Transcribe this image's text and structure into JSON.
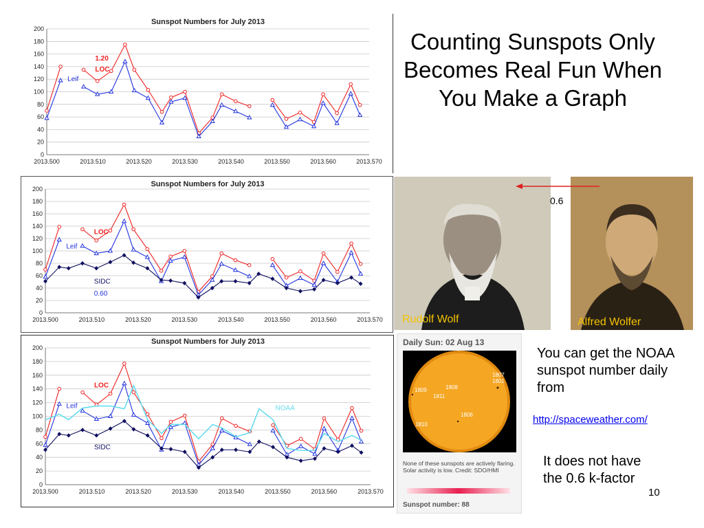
{
  "slide": {
    "title": "Counting Sunspots Only Becomes Real Fun When You Make a Graph",
    "factor_label": "0.6",
    "wolf_caption": "Rudolf Wolf",
    "wolfer_caption": "Alfred Wolfer",
    "noaa_text": "You can get the NOAA sunspot number daily from",
    "link_text": "http://spaceweather.com/",
    "k_factor_text": "It does not have the 0.6 k-factor",
    "page_number": "10"
  },
  "daily_sun": {
    "title": "Daily Sun: 02 Aug 13",
    "regions": [
      "1807",
      "1801",
      "1809",
      "1808",
      "1811",
      "1806",
      "1810"
    ],
    "note": "None of these sunspots are actively flaring. Solar activity is low. Credit: SDO/HMI",
    "sunspot_number": "Sunspot number: 88"
  },
  "colors": {
    "loc": "#ee2222",
    "leif": "#2233dd",
    "sidc": "#101060",
    "noaa": "#66ddee",
    "wolf_caption": "#f5c400"
  },
  "chart_data": [
    {
      "type": "line",
      "title": "Sunspot Numbers for July 2013",
      "xlim": [
        2013.5,
        2013.57
      ],
      "ylim": [
        0,
        200
      ],
      "yticks": [
        0,
        20,
        40,
        60,
        80,
        100,
        120,
        140,
        160,
        180,
        200
      ],
      "xticks": [
        2013.5,
        2013.51,
        2013.52,
        2013.53,
        2013.54,
        2013.55,
        2013.56,
        2013.57
      ],
      "grid": true,
      "annotations": [
        "1.20"
      ],
      "series": [
        {
          "name": "LOC",
          "x": [
            2013.5,
            2013.503,
            null,
            2013.508,
            2013.511,
            2013.514,
            2013.517,
            2013.519,
            2013.522,
            2013.525,
            2013.527,
            2013.53,
            2013.533,
            2013.536,
            2013.538,
            2013.541,
            2013.544,
            null,
            2013.549,
            2013.552,
            2013.555,
            2013.558,
            2013.56,
            2013.563,
            2013.566,
            2013.568
          ],
          "y": [
            70,
            140,
            null,
            135,
            117,
            133,
            175,
            135,
            103,
            68,
            91,
            100,
            34,
            59,
            96,
            85,
            77,
            null,
            87,
            57,
            67,
            52,
            96,
            66,
            112,
            79
          ]
        },
        {
          "name": "Leif",
          "x": [
            2013.5,
            2013.503,
            null,
            2013.508,
            2013.511,
            2013.514,
            2013.517,
            2013.519,
            2013.522,
            2013.525,
            2013.527,
            2013.53,
            2013.533,
            2013.536,
            2013.538,
            2013.541,
            2013.544,
            null,
            2013.549,
            2013.552,
            2013.555,
            2013.558,
            2013.56,
            2013.563,
            2013.566,
            2013.568
          ],
          "y": [
            58,
            118,
            null,
            108,
            96,
            100,
            148,
            102,
            90,
            51,
            84,
            90,
            29,
            53,
            79,
            69,
            59,
            null,
            79,
            44,
            56,
            45,
            82,
            50,
            97,
            63
          ]
        }
      ]
    },
    {
      "type": "line",
      "title": "Sunspot Numbers for July 2013",
      "xlim": [
        2013.5,
        2013.57
      ],
      "ylim": [
        0,
        200
      ],
      "yticks": [
        0,
        20,
        40,
        60,
        80,
        100,
        120,
        140,
        160,
        180,
        200
      ],
      "xticks": [
        2013.5,
        2013.51,
        2013.52,
        2013.53,
        2013.54,
        2013.55,
        2013.56,
        2013.57
      ],
      "grid": true,
      "annotations": [
        "0.60"
      ],
      "series": [
        {
          "name": "LOC",
          "x": [
            2013.5,
            2013.503,
            null,
            2013.508,
            2013.511,
            2013.514,
            2013.517,
            2013.519,
            2013.522,
            2013.525,
            2013.527,
            2013.53,
            2013.533,
            2013.536,
            2013.538,
            2013.541,
            2013.544,
            null,
            2013.549,
            2013.552,
            2013.555,
            2013.558,
            2013.56,
            2013.563,
            2013.566,
            2013.568
          ],
          "y": [
            70,
            139,
            null,
            135,
            117,
            133,
            175,
            135,
            103,
            68,
            91,
            100,
            34,
            59,
            96,
            85,
            77,
            null,
            87,
            57,
            67,
            52,
            96,
            66,
            112,
            79
          ]
        },
        {
          "name": "Leif",
          "x": [
            2013.5,
            2013.503,
            null,
            2013.508,
            2013.511,
            2013.514,
            2013.517,
            2013.519,
            2013.522,
            2013.525,
            2013.527,
            2013.53,
            2013.533,
            2013.536,
            2013.538,
            2013.541,
            2013.544,
            null,
            2013.549,
            2013.552,
            2013.555,
            2013.558,
            2013.56,
            2013.563,
            2013.566,
            2013.568
          ],
          "y": [
            58,
            118,
            null,
            108,
            96,
            100,
            148,
            102,
            90,
            51,
            84,
            90,
            29,
            53,
            79,
            69,
            59,
            null,
            77,
            44,
            56,
            45,
            80,
            50,
            97,
            63
          ]
        },
        {
          "name": "SIDC",
          "x": [
            2013.5,
            2013.503,
            2013.505,
            2013.508,
            2013.511,
            2013.514,
            2013.517,
            2013.519,
            2013.522,
            2013.525,
            2013.527,
            2013.53,
            2013.533,
            2013.536,
            2013.538,
            2013.541,
            2013.544,
            2013.546,
            2013.549,
            2013.552,
            2013.555,
            2013.558,
            2013.56,
            2013.563,
            2013.566,
            2013.568
          ],
          "y": [
            51,
            74,
            72,
            80,
            72,
            82,
            93,
            81,
            72,
            53,
            52,
            48,
            25,
            40,
            51,
            51,
            48,
            63,
            55,
            40,
            35,
            38,
            53,
            48,
            57,
            47
          ]
        }
      ]
    },
    {
      "type": "line",
      "title": "Sunspot Numbers for July 2013",
      "xlim": [
        2013.5,
        2013.57
      ],
      "ylim": [
        0,
        200
      ],
      "yticks": [
        0,
        20,
        40,
        60,
        80,
        100,
        120,
        140,
        160,
        180,
        200
      ],
      "xticks": [
        2013.5,
        2013.51,
        2013.52,
        2013.53,
        2013.54,
        2013.55,
        2013.56,
        2013.57
      ],
      "grid": true,
      "series": [
        {
          "name": "LOC",
          "x": [
            2013.5,
            2013.503,
            null,
            2013.508,
            2013.511,
            2013.514,
            2013.517,
            2013.519,
            2013.522,
            2013.525,
            2013.527,
            2013.53,
            2013.533,
            2013.536,
            2013.538,
            2013.541,
            2013.544,
            null,
            2013.549,
            2013.552,
            2013.555,
            2013.558,
            2013.56,
            2013.563,
            2013.566,
            2013.568
          ],
          "y": [
            70,
            140,
            null,
            135,
            117,
            133,
            177,
            135,
            103,
            68,
            92,
            101,
            34,
            59,
            97,
            86,
            78,
            null,
            87,
            57,
            67,
            52,
            97,
            66,
            112,
            79
          ]
        },
        {
          "name": "Leif",
          "x": [
            2013.5,
            2013.503,
            null,
            2013.508,
            2013.511,
            2013.514,
            2013.517,
            2013.519,
            2013.522,
            2013.525,
            2013.527,
            2013.53,
            2013.533,
            2013.536,
            2013.538,
            2013.541,
            2013.544,
            null,
            2013.549,
            2013.552,
            2013.555,
            2013.558,
            2013.56,
            2013.563,
            2013.566,
            2013.568
          ],
          "y": [
            58,
            118,
            null,
            108,
            96,
            100,
            148,
            102,
            90,
            51,
            84,
            90,
            29,
            53,
            79,
            69,
            59,
            null,
            79,
            44,
            56,
            45,
            82,
            50,
            97,
            63
          ]
        },
        {
          "name": "SIDC",
          "x": [
            2013.5,
            2013.503,
            2013.505,
            2013.508,
            2013.511,
            2013.514,
            2013.517,
            2013.519,
            2013.522,
            2013.525,
            2013.527,
            2013.53,
            2013.533,
            2013.536,
            2013.538,
            2013.541,
            2013.544,
            2013.546,
            2013.549,
            2013.552,
            2013.555,
            2013.558,
            2013.56,
            2013.563,
            2013.566,
            2013.568
          ],
          "y": [
            51,
            74,
            72,
            80,
            72,
            82,
            93,
            81,
            72,
            53,
            52,
            48,
            25,
            40,
            51,
            51,
            48,
            63,
            55,
            40,
            35,
            38,
            53,
            48,
            57,
            47
          ]
        },
        {
          "name": "NOAA",
          "x": [
            2013.5,
            2013.503,
            2013.505,
            2013.508,
            2013.511,
            2013.514,
            2013.517,
            2013.519,
            2013.522,
            2013.525,
            2013.527,
            2013.53,
            2013.533,
            2013.536,
            2013.538,
            2013.541,
            2013.544,
            2013.546,
            2013.549,
            2013.552,
            2013.555,
            2013.558,
            2013.56,
            2013.563,
            2013.566,
            2013.568
          ],
          "y": [
            95,
            103,
            95,
            112,
            115,
            115,
            111,
            145,
            95,
            75,
            88,
            88,
            67,
            88,
            83,
            70,
            76,
            111,
            95,
            53,
            50,
            50,
            75,
            63,
            72,
            65
          ]
        }
      ]
    }
  ]
}
